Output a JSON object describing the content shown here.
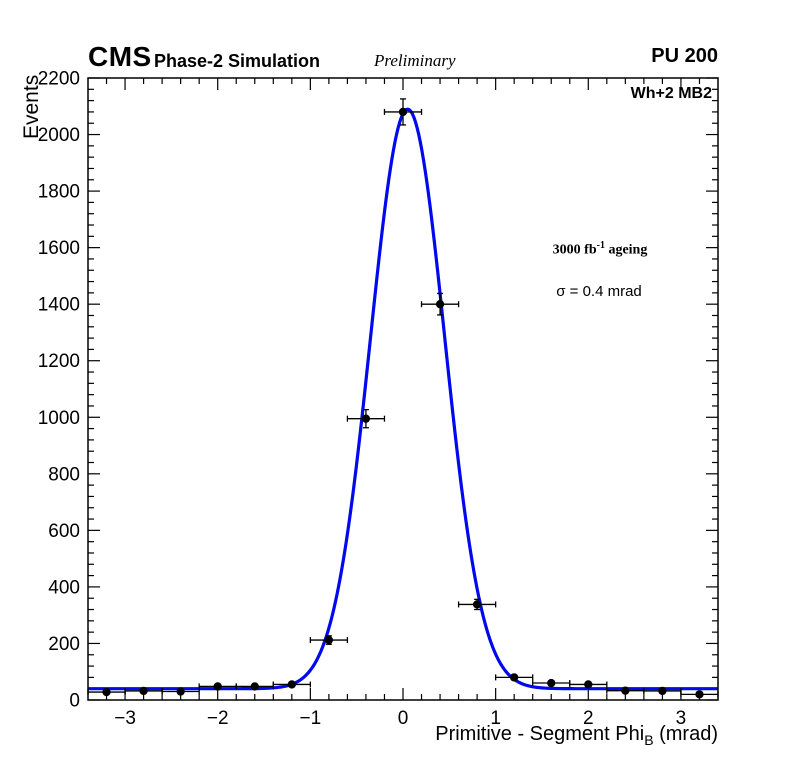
{
  "header": {
    "experiment": "CMS",
    "context": "Phase-2 Simulation",
    "status": "Preliminary",
    "pileup": "PU 200"
  },
  "plot_labels": {
    "region": "Wh+2 MB2",
    "ageing_prefix": "3000 fb",
    "ageing_sup": "-1",
    "ageing_suffix": " ageing",
    "sigma": "σ = 0.4 mrad"
  },
  "axes": {
    "y_title": "Events",
    "x_title_main": "Primitive - Segment Phi",
    "x_title_sub": "B",
    "x_title_suffix": " (mrad)"
  },
  "chart_data": {
    "type": "scatter",
    "subtype": "histogram-points-with-gaussian-fit",
    "title": "",
    "xlabel": "Primitive - Segment Phi_B (mrad)",
    "ylabel": "Events",
    "x_range": [
      -3.4,
      3.4
    ],
    "y_range": [
      0,
      2200
    ],
    "x_major_ticks": [
      -3,
      -2,
      -1,
      0,
      1,
      2,
      3
    ],
    "x_minor_step": 0.2,
    "y_major_ticks": [
      0,
      200,
      400,
      600,
      800,
      1000,
      1200,
      1400,
      1600,
      1800,
      2000,
      2200
    ],
    "y_minor_step": 40,
    "grid": false,
    "legend": "none",
    "curve_color": "#0008ee",
    "marker_color": "#000000",
    "fit": {
      "model": "gaussian_plus_constant",
      "baseline": 40,
      "amplitude": 2050,
      "mean": 0.05,
      "sigma": 0.4
    },
    "points": [
      {
        "x": -3.2,
        "y": 28,
        "ex": 0.2,
        "ey": 6
      },
      {
        "x": -2.8,
        "y": 32,
        "ex": 0.2,
        "ey": 6
      },
      {
        "x": -2.4,
        "y": 30,
        "ex": 0.2,
        "ey": 6
      },
      {
        "x": -2.0,
        "y": 48,
        "ex": 0.2,
        "ey": 7
      },
      {
        "x": -1.6,
        "y": 48,
        "ex": 0.2,
        "ey": 7
      },
      {
        "x": -1.2,
        "y": 55,
        "ex": 0.2,
        "ey": 8
      },
      {
        "x": -0.8,
        "y": 212,
        "ex": 0.2,
        "ey": 15
      },
      {
        "x": -0.4,
        "y": 995,
        "ex": 0.2,
        "ey": 32
      },
      {
        "x": 0.0,
        "y": 2080,
        "ex": 0.2,
        "ey": 46
      },
      {
        "x": 0.4,
        "y": 1400,
        "ex": 0.2,
        "ey": 38
      },
      {
        "x": 0.8,
        "y": 338,
        "ex": 0.2,
        "ey": 18
      },
      {
        "x": 1.2,
        "y": 80,
        "ex": 0.2,
        "ey": 9
      },
      {
        "x": 1.6,
        "y": 60,
        "ex": 0.2,
        "ey": 8
      },
      {
        "x": 2.0,
        "y": 55,
        "ex": 0.2,
        "ey": 8
      },
      {
        "x": 2.4,
        "y": 33,
        "ex": 0.2,
        "ey": 6
      },
      {
        "x": 2.8,
        "y": 32,
        "ex": 0.2,
        "ey": 6
      },
      {
        "x": 3.2,
        "y": 20,
        "ex": 0.2,
        "ey": 5
      }
    ]
  }
}
